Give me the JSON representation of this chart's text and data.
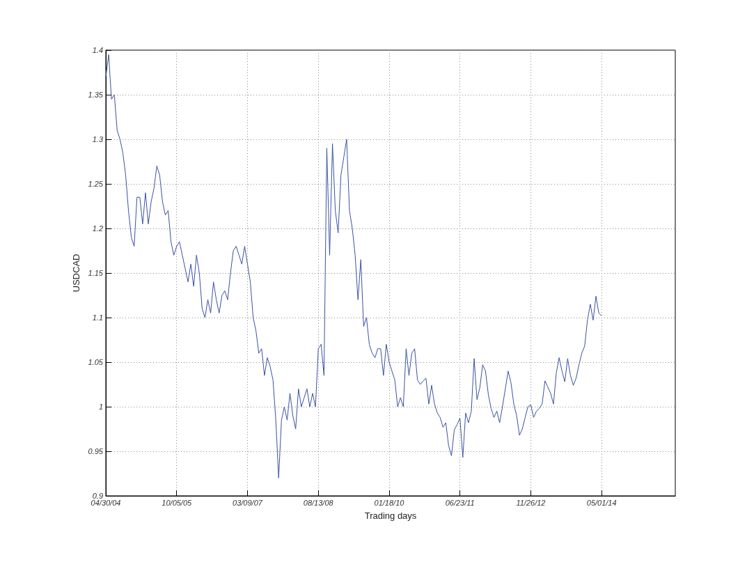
{
  "chart_data": {
    "type": "line",
    "xlabel": "Trading days",
    "ylabel": "USDCAD",
    "ylim": [
      0.9,
      1.4
    ],
    "yticks": [
      0.9,
      0.95,
      1,
      1.05,
      1.1,
      1.15,
      1.2,
      1.25,
      1.3,
      1.35,
      1.4
    ],
    "grid": true,
    "marker": "none",
    "line_style": "solid",
    "categories": [
      "04/30/04",
      null,
      null,
      null,
      null,
      null,
      null,
      null,
      null,
      null,
      null,
      null,
      null,
      null,
      null,
      null,
      null,
      null,
      null,
      null,
      null,
      null,
      null,
      null,
      null,
      "10/05/05",
      null,
      null,
      null,
      null,
      null,
      null,
      null,
      null,
      null,
      null,
      null,
      null,
      null,
      null,
      null,
      null,
      null,
      null,
      null,
      null,
      null,
      null,
      null,
      null,
      "03/09/07",
      null,
      null,
      null,
      null,
      null,
      null,
      null,
      null,
      null,
      null,
      null,
      null,
      null,
      null,
      null,
      null,
      null,
      null,
      null,
      null,
      null,
      null,
      null,
      null,
      "08/13/08",
      null,
      null,
      null,
      null,
      null,
      null,
      null,
      null,
      null,
      null,
      null,
      null,
      null,
      null,
      null,
      null,
      null,
      null,
      null,
      null,
      null,
      null,
      null,
      null,
      "01/18/10",
      null,
      null,
      null,
      null,
      null,
      null,
      null,
      null,
      null,
      null,
      null,
      null,
      null,
      null,
      null,
      null,
      null,
      null,
      null,
      null,
      null,
      null,
      null,
      null,
      "06/23/11",
      null,
      null,
      null,
      null,
      null,
      null,
      null,
      null,
      null,
      null,
      null,
      null,
      null,
      null,
      null,
      null,
      null,
      null,
      null,
      null,
      null,
      null,
      null,
      null,
      "11/26/12",
      null,
      null,
      null,
      null,
      null,
      null,
      null,
      null,
      null,
      null,
      null,
      null,
      null,
      null,
      null,
      null,
      null,
      null,
      null,
      null,
      null,
      null,
      null,
      null,
      "05/01/14",
      null,
      null,
      null,
      null,
      null,
      null,
      null,
      null,
      null,
      null,
      null,
      null,
      null,
      null,
      null,
      null,
      null,
      null,
      null,
      null,
      null,
      null,
      null,
      null,
      null,
      null
    ],
    "series": [
      {
        "color": "#3a52a4",
        "values": [
          1.37,
          1.395,
          1.345,
          1.35,
          1.31,
          1.3,
          1.285,
          1.26,
          1.22,
          1.19,
          1.18,
          1.235,
          1.235,
          1.205,
          1.24,
          1.205,
          1.23,
          1.245,
          1.27,
          1.26,
          1.23,
          1.215,
          1.22,
          1.185,
          1.17,
          1.18,
          1.185,
          1.17,
          1.155,
          1.14,
          1.16,
          1.135,
          1.17,
          1.15,
          1.11,
          1.1,
          1.12,
          1.105,
          1.14,
          1.12,
          1.105,
          1.125,
          1.13,
          1.12,
          1.15,
          1.175,
          1.18,
          1.17,
          1.16,
          1.18,
          1.16,
          1.14,
          1.1,
          1.085,
          1.06,
          1.065,
          1.035,
          1.055,
          1.045,
          1.03,
          0.985,
          0.92,
          0.985,
          1.0,
          0.985,
          1.015,
          0.99,
          0.975,
          1.02,
          1.0,
          1.01,
          1.02,
          1.0,
          1.015,
          1.0,
          1.065,
          1.07,
          1.035,
          1.29,
          1.17,
          1.295,
          1.22,
          1.195,
          1.26,
          1.28,
          1.3,
          1.22,
          1.2,
          1.17,
          1.12,
          1.165,
          1.09,
          1.1,
          1.07,
          1.06,
          1.055,
          1.065,
          1.065,
          1.035,
          1.07,
          1.05,
          1.04,
          1.03,
          1.0,
          1.01,
          1.0,
          1.065,
          1.035,
          1.06,
          1.065,
          1.03,
          1.025,
          1.029,
          1.032,
          1.003,
          1.024,
          1.003,
          0.993,
          0.988,
          0.977,
          0.982,
          0.956,
          0.945,
          0.974,
          0.98,
          0.987,
          0.943,
          0.993,
          0.982,
          0.995,
          1.054,
          1.008,
          1.021,
          1.047,
          1.04,
          1.014,
          0.998,
          0.988,
          0.995,
          0.982,
          1.0,
          1.02,
          1.04,
          1.027,
          1.003,
          0.99,
          0.968,
          0.975,
          0.988,
          1.0,
          1.002,
          0.988,
          0.995,
          0.998,
          1.003,
          1.029,
          1.022,
          1.015,
          1.003,
          1.038,
          1.055,
          1.04,
          1.028,
          1.054,
          1.035,
          1.024,
          1.032,
          1.047,
          1.06,
          1.068,
          1.097,
          1.115,
          1.097,
          1.124,
          1.105,
          1.102,
          null,
          null,
          null,
          null,
          null,
          null,
          null,
          null,
          null,
          null,
          null,
          null,
          null,
          null,
          null,
          null,
          null,
          null,
          null,
          null,
          null,
          null,
          null,
          null,
          null,
          null
        ]
      }
    ]
  }
}
